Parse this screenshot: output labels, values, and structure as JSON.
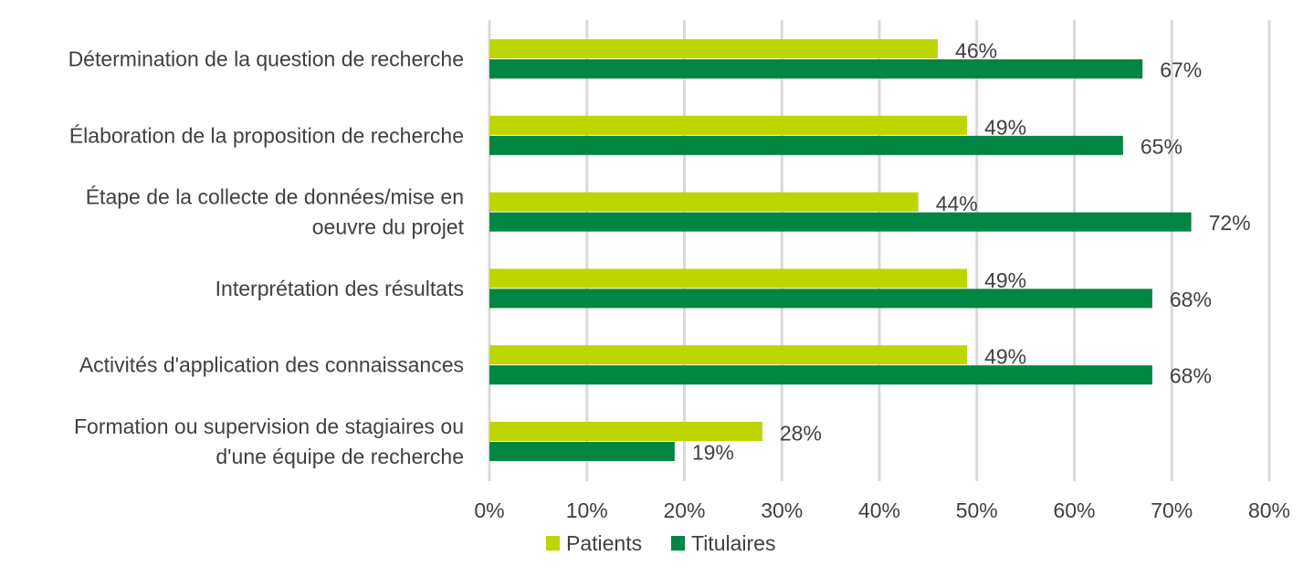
{
  "chart_data": {
    "type": "bar",
    "orientation": "horizontal",
    "categories": [
      [
        "Détermination de la question de recherche"
      ],
      [
        "Élaboration de la proposition de recherche"
      ],
      [
        "Étape de la collecte de données/mise en",
        "oeuvre du projet"
      ],
      [
        "Interprétation des résultats"
      ],
      [
        "Activités d'application des connaissances"
      ],
      [
        "Formation ou supervision de stagiaires ou",
        "d'une équipe de recherche"
      ]
    ],
    "series": [
      {
        "name": "Patients",
        "color": "#bed600",
        "values": [
          46,
          49,
          44,
          49,
          49,
          28
        ],
        "labels": [
          "46%",
          "49%",
          "44%",
          "49%",
          "49%",
          "28%"
        ]
      },
      {
        "name": "Titulaires",
        "color": "#008542",
        "values": [
          67,
          65,
          72,
          68,
          68,
          19
        ],
        "labels": [
          "67%",
          "65%",
          "72%",
          "68%",
          "68%",
          "19%"
        ]
      }
    ],
    "xlim": [
      0,
      80
    ],
    "xticks": [
      0,
      10,
      20,
      30,
      40,
      50,
      60,
      70,
      80
    ],
    "xtick_labels": [
      "0%",
      "10%",
      "20%",
      "30%",
      "40%",
      "50%",
      "60%",
      "70%",
      "80%"
    ],
    "grid": "vertical",
    "gridColor": "#d9d9d9",
    "legend": "bottom"
  }
}
